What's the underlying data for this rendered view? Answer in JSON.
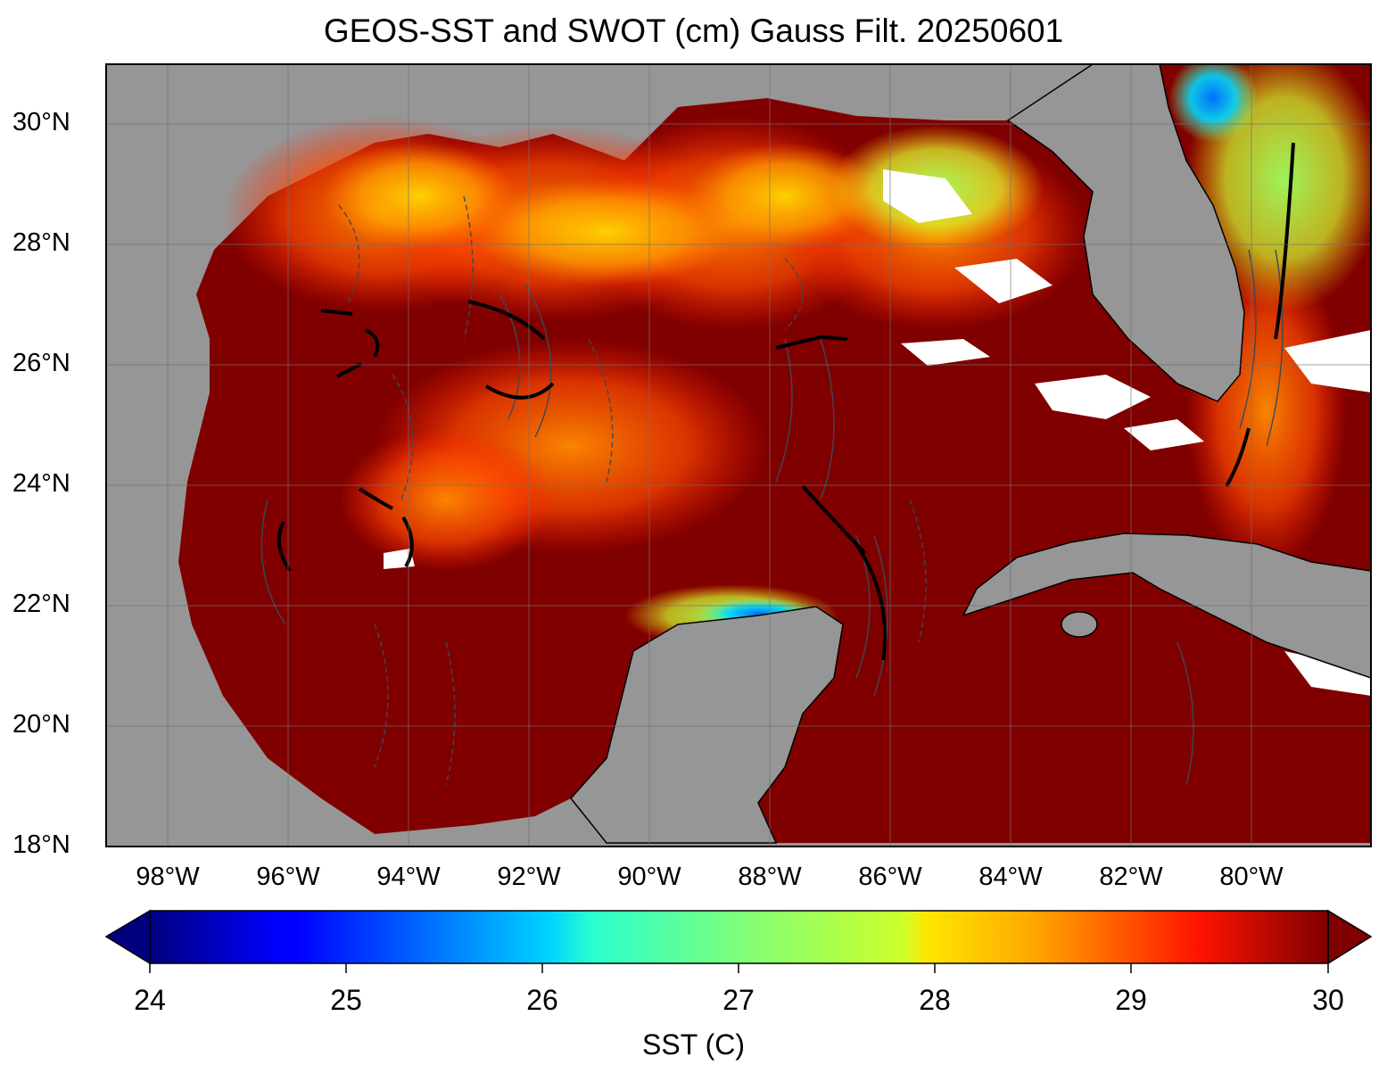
{
  "title": "GEOS-SST  and SWOT (cm) Gauss Filt. 20250601",
  "map": {
    "lat_labels": [
      "30°N",
      "28°N",
      "26°N",
      "24°N",
      "22°N",
      "20°N",
      "18°N"
    ],
    "lon_labels": [
      "98°W",
      "96°W",
      "94°W",
      "92°W",
      "90°W",
      "88°W",
      "86°W",
      "84°W",
      "82°W",
      "80°W"
    ],
    "land_color": "#969696",
    "ocean_base_color": "#800000"
  },
  "colorbar": {
    "label": "SST (C)",
    "ticks": [
      "24",
      "25",
      "26",
      "27",
      "28",
      "29",
      "30"
    ],
    "min": 24,
    "max": 30,
    "extend": "both",
    "colormap": "jet"
  }
}
